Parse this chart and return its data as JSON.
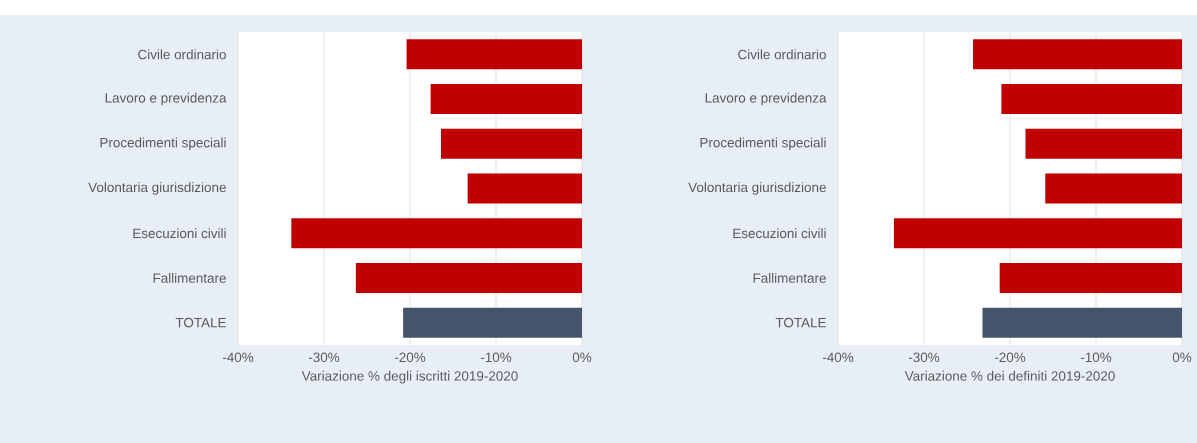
{
  "chart_data": [
    {
      "type": "bar",
      "orientation": "horizontal",
      "xlabel": "Variazione % degli iscritti 2019-2020",
      "categories": [
        "Civile ordinario",
        "Lavoro e previdenza",
        "Procedimenti speciali",
        "Volontaria giurisdizione",
        "Esecuzioni civili",
        "Fallimentare",
        "TOTALE"
      ],
      "values": [
        -20.4,
        -17.6,
        -16.4,
        -13.3,
        -33.8,
        -26.3,
        -20.8
      ],
      "colors": [
        "#c00000",
        "#c00000",
        "#c00000",
        "#c00000",
        "#c00000",
        "#c00000",
        "#44546a"
      ],
      "xlim": [
        -40,
        0
      ],
      "xticks": [
        {
          "value": -40,
          "label": "-40%"
        },
        {
          "value": -30,
          "label": "-30%"
        },
        {
          "value": -20,
          "label": "-20%"
        },
        {
          "value": -10,
          "label": "-10%"
        },
        {
          "value": 0,
          "label": "0%"
        }
      ],
      "grid": "x"
    },
    {
      "type": "bar",
      "orientation": "horizontal",
      "xlabel": "Variazione % dei definiti 2019-2020",
      "categories": [
        "Civile ordinario",
        "Lavoro e previdenza",
        "Procedimenti speciali",
        "Volontaria giurisdizione",
        "Esecuzioni civili",
        "Fallimentare",
        "TOTALE"
      ],
      "values": [
        -24.3,
        -21.0,
        -18.2,
        -15.9,
        -33.5,
        -21.2,
        -23.2
      ],
      "colors": [
        "#c00000",
        "#c00000",
        "#c00000",
        "#c00000",
        "#c00000",
        "#c00000",
        "#44546a"
      ],
      "xlim": [
        -40,
        0
      ],
      "xticks": [
        {
          "value": -40,
          "label": "-40%"
        },
        {
          "value": -30,
          "label": "-30%"
        },
        {
          "value": -20,
          "label": "-20%"
        },
        {
          "value": -10,
          "label": "-10%"
        },
        {
          "value": 0,
          "label": "0%"
        }
      ],
      "grid": "x"
    }
  ]
}
